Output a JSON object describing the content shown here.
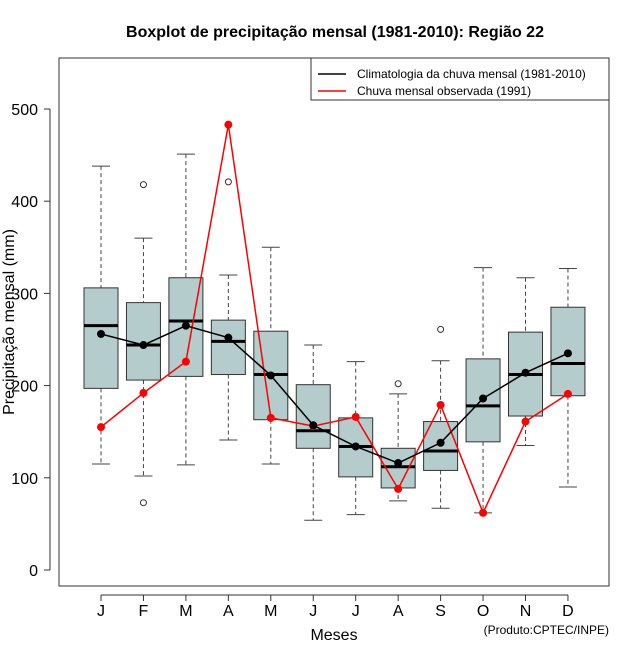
{
  "chart_data": {
    "type": "boxplot",
    "title": "Boxplot de precipitação mensal (1981-2010): Região 22",
    "xlabel": "Meses",
    "ylabel": "Precipitação mensal (mm)",
    "ylim": [
      0,
      550
    ],
    "yticks": [
      0,
      100,
      200,
      300,
      400,
      500
    ],
    "categories": [
      "J",
      "F",
      "M",
      "A",
      "M",
      "J",
      "J",
      "A",
      "S",
      "O",
      "N",
      "D"
    ],
    "boxes": [
      {
        "min": 115,
        "q1": 197,
        "median": 265,
        "q3": 306,
        "max": 438,
        "outliers": []
      },
      {
        "min": 102,
        "q1": 206,
        "median": 244,
        "q3": 290,
        "max": 360,
        "outliers": [
          418,
          73
        ]
      },
      {
        "min": 114,
        "q1": 210,
        "median": 270,
        "q3": 317,
        "max": 451,
        "outliers": []
      },
      {
        "min": 141,
        "q1": 212,
        "median": 248,
        "q3": 271,
        "max": 320,
        "outliers": [
          421
        ]
      },
      {
        "min": 115,
        "q1": 163,
        "median": 212,
        "q3": 259,
        "max": 350,
        "outliers": []
      },
      {
        "min": 54,
        "q1": 132,
        "median": 151,
        "q3": 201,
        "max": 244,
        "outliers": []
      },
      {
        "min": 60,
        "q1": 101,
        "median": 134,
        "q3": 165,
        "max": 226,
        "outliers": []
      },
      {
        "min": 75,
        "q1": 89,
        "median": 112,
        "q3": 132,
        "max": 191,
        "outliers": [
          202
        ]
      },
      {
        "min": 67,
        "q1": 108,
        "median": 129,
        "q3": 161,
        "max": 227,
        "outliers": [
          261
        ]
      },
      {
        "min": 62,
        "q1": 139,
        "median": 178,
        "q3": 229,
        "max": 328,
        "outliers": []
      },
      {
        "min": 135,
        "q1": 167,
        "median": 212,
        "q3": 258,
        "max": 317,
        "outliers": []
      },
      {
        "min": 90,
        "q1": 189,
        "median": 224,
        "q3": 285,
        "max": 327,
        "outliers": []
      }
    ],
    "series": [
      {
        "name": "Climatologia da chuva mensal (1981-2010)",
        "color": "#000000",
        "values": [
          256,
          244,
          265,
          252,
          211,
          157,
          134,
          116,
          138,
          186,
          214,
          235
        ]
      },
      {
        "name": "Chuva mensal observada (1991)",
        "color": "#ff0000",
        "values": [
          155,
          192,
          226,
          483,
          165,
          156,
          166,
          88,
          179,
          62,
          161,
          191
        ]
      }
    ],
    "box_color": "#b4cccc",
    "legend": "top-right",
    "footnote": "(Produto:CPTEC/INPE)"
  }
}
